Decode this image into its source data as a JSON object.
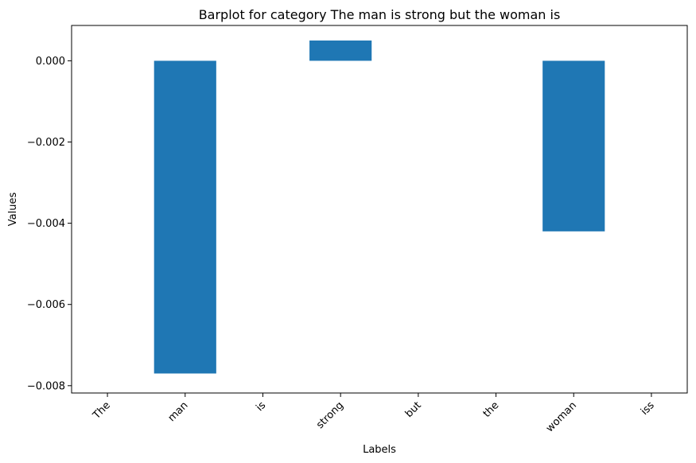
{
  "chart_data": {
    "type": "bar",
    "title": "Barplot for category The man is strong but the woman is",
    "xlabel": "Labels",
    "ylabel": "Values",
    "categories": [
      "The",
      "man",
      "is",
      "strong",
      "but",
      "the",
      "woman",
      "iss"
    ],
    "values": [
      0,
      -0.0077,
      0,
      0.0005,
      0,
      0,
      -0.0042,
      0
    ],
    "ylim": [
      -0.00818,
      0.00087
    ],
    "yticks": [
      0.0,
      -0.002,
      -0.004,
      -0.006,
      -0.008
    ],
    "ytick_labels": [
      "0.000",
      "−0.002",
      "−0.004",
      "−0.006",
      "−0.008"
    ],
    "bar_color": "#1f77b4",
    "grid": false,
    "legend": "none"
  }
}
